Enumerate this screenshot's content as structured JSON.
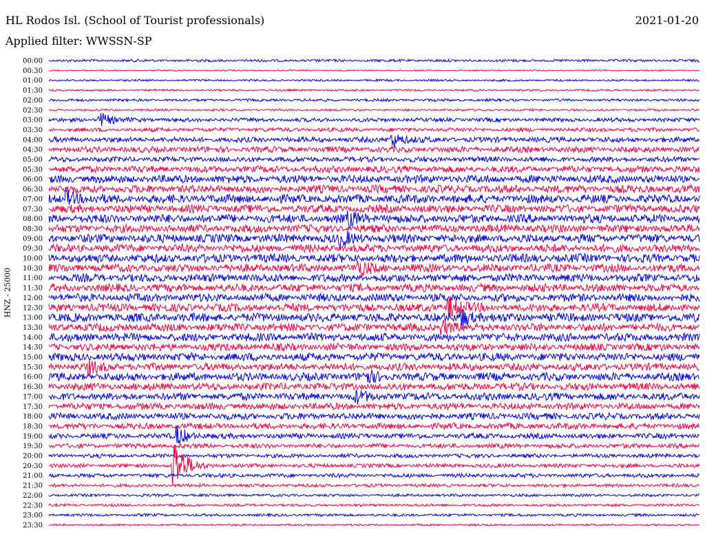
{
  "header": {
    "station": "HL Rodos Isl. (School of Tourist professionals)",
    "date": "2021-01-20",
    "filter": "Applied filter: WWSSN-SP"
  },
  "chart_data": {
    "type": "line",
    "title": "HL Rodos Isl. (School of Tourist professionals)",
    "ylabel": "HNZ - 25000",
    "colors": [
      "#0000e0",
      "#f00040"
    ],
    "rows": [
      "00:00",
      "00:30",
      "01:00",
      "01:30",
      "02:00",
      "02:30",
      "03:00",
      "03:30",
      "04:00",
      "04:30",
      "05:00",
      "05:30",
      "06:00",
      "06:30",
      "07:00",
      "07:30",
      "08:00",
      "08:30",
      "09:00",
      "09:30",
      "10:00",
      "10:30",
      "11:00",
      "11:30",
      "12:00",
      "12:30",
      "13:00",
      "13:30",
      "14:00",
      "14:30",
      "15:00",
      "15:30",
      "16:00",
      "16:30",
      "17:00",
      "17:30",
      "18:00",
      "18:30",
      "19:00",
      "19:30",
      "20:00",
      "20:30",
      "21:00",
      "21:30",
      "22:00",
      "22:30",
      "23:00",
      "23:30"
    ],
    "row_duration_minutes": 30,
    "noise_level": [
      2,
      1,
      1.5,
      1.5,
      2,
      1.5,
      3,
      3,
      4,
      4.5,
      4,
      5,
      6,
      6,
      6.5,
      6,
      6.5,
      6,
      6.5,
      6,
      6.5,
      6,
      6,
      6,
      6,
      6,
      6.5,
      6,
      6,
      5.5,
      6,
      5.5,
      6,
      5.5,
      5.5,
      5,
      5,
      4.5,
      4,
      3.5,
      3,
      3,
      3,
      2.5,
      2,
      2,
      2,
      1.5
    ],
    "events": [
      {
        "row": "03:00",
        "minute": 2.3,
        "amp": 12
      },
      {
        "row": "04:00",
        "minute": 15.8,
        "amp": 12
      },
      {
        "row": "07:00",
        "minute": 0.8,
        "amp": 12
      },
      {
        "row": "08:00",
        "minute": 13.8,
        "amp": 10
      },
      {
        "row": "09:00",
        "minute": 13.4,
        "amp": 10
      },
      {
        "row": "10:30",
        "minute": 14.2,
        "amp": 12
      },
      {
        "row": "12:30",
        "minute": 18.4,
        "amp": 18
      },
      {
        "row": "13:00",
        "minute": 19.0,
        "amp": 14
      },
      {
        "row": "13:30",
        "minute": 18.1,
        "amp": 10
      },
      {
        "row": "15:30",
        "minute": 1.8,
        "amp": 9
      },
      {
        "row": "16:00",
        "minute": 14.5,
        "amp": 10
      },
      {
        "row": "17:00",
        "minute": 14.1,
        "amp": 9
      },
      {
        "row": "19:00",
        "minute": 5.9,
        "amp": 14
      },
      {
        "row": "20:30",
        "minute": 5.7,
        "amp": 50
      }
    ]
  }
}
